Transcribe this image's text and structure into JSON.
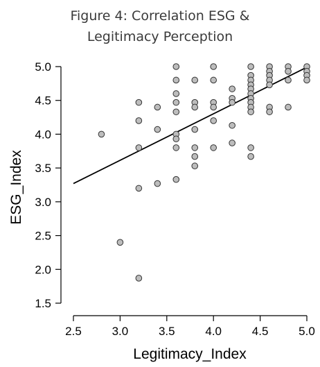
{
  "title_line1": "Figure 4:   Correlation ESG &",
  "title_line2": "Legitimacy Perception",
  "chart_data": {
    "type": "scatter",
    "xlabel": "Legitimacy_Index",
    "ylabel": "ESG_Index",
    "xlim": [
      2.5,
      5.0
    ],
    "ylim": [
      1.5,
      5.0
    ],
    "xticks": [
      "2.5",
      "3.0",
      "3.5",
      "4.0",
      "4.5",
      "5.0"
    ],
    "yticks": [
      "1.5",
      "2.0",
      "2.5",
      "3.0",
      "3.5",
      "4.0",
      "4.5",
      "5.0"
    ],
    "grid": false,
    "regression_line": {
      "x": [
        2.5,
        5.0
      ],
      "y": [
        3.27,
        4.99
      ]
    },
    "points": [
      {
        "x": 2.8,
        "y": 4.0
      },
      {
        "x": 3.0,
        "y": 2.4
      },
      {
        "x": 3.2,
        "y": 4.47
      },
      {
        "x": 3.2,
        "y": 4.2
      },
      {
        "x": 3.2,
        "y": 3.8
      },
      {
        "x": 3.2,
        "y": 3.2
      },
      {
        "x": 3.2,
        "y": 1.87
      },
      {
        "x": 3.4,
        "y": 4.4
      },
      {
        "x": 3.4,
        "y": 4.07
      },
      {
        "x": 3.4,
        "y": 3.27
      },
      {
        "x": 3.6,
        "y": 5.0
      },
      {
        "x": 3.6,
        "y": 4.8
      },
      {
        "x": 3.6,
        "y": 4.6
      },
      {
        "x": 3.6,
        "y": 4.47
      },
      {
        "x": 3.6,
        "y": 4.33
      },
      {
        "x": 3.6,
        "y": 4.0
      },
      {
        "x": 3.6,
        "y": 3.93
      },
      {
        "x": 3.6,
        "y": 3.8
      },
      {
        "x": 3.6,
        "y": 3.33
      },
      {
        "x": 3.8,
        "y": 4.8
      },
      {
        "x": 3.8,
        "y": 4.47
      },
      {
        "x": 3.8,
        "y": 4.4
      },
      {
        "x": 3.8,
        "y": 4.07
      },
      {
        "x": 3.8,
        "y": 3.8
      },
      {
        "x": 3.8,
        "y": 3.67
      },
      {
        "x": 3.8,
        "y": 3.53
      },
      {
        "x": 4.0,
        "y": 5.0
      },
      {
        "x": 4.0,
        "y": 4.8
      },
      {
        "x": 4.0,
        "y": 4.47
      },
      {
        "x": 4.0,
        "y": 4.4
      },
      {
        "x": 4.0,
        "y": 4.2
      },
      {
        "x": 4.0,
        "y": 3.8
      },
      {
        "x": 4.2,
        "y": 4.67
      },
      {
        "x": 4.2,
        "y": 4.53
      },
      {
        "x": 4.2,
        "y": 4.47
      },
      {
        "x": 4.2,
        "y": 4.13
      },
      {
        "x": 4.2,
        "y": 3.87
      },
      {
        "x": 4.4,
        "y": 5.0
      },
      {
        "x": 4.4,
        "y": 4.87
      },
      {
        "x": 4.4,
        "y": 4.8
      },
      {
        "x": 4.4,
        "y": 4.73
      },
      {
        "x": 4.4,
        "y": 4.67
      },
      {
        "x": 4.4,
        "y": 4.6
      },
      {
        "x": 4.4,
        "y": 4.53
      },
      {
        "x": 4.4,
        "y": 4.47
      },
      {
        "x": 4.4,
        "y": 4.4
      },
      {
        "x": 4.4,
        "y": 4.33
      },
      {
        "x": 4.4,
        "y": 3.8
      },
      {
        "x": 4.4,
        "y": 3.67
      },
      {
        "x": 4.6,
        "y": 5.0
      },
      {
        "x": 4.6,
        "y": 4.93
      },
      {
        "x": 4.6,
        "y": 4.87
      },
      {
        "x": 4.6,
        "y": 4.8
      },
      {
        "x": 4.6,
        "y": 4.73
      },
      {
        "x": 4.6,
        "y": 4.4
      },
      {
        "x": 4.6,
        "y": 4.33
      },
      {
        "x": 4.8,
        "y": 5.0
      },
      {
        "x": 4.8,
        "y": 4.93
      },
      {
        "x": 4.8,
        "y": 4.8
      },
      {
        "x": 4.8,
        "y": 4.4
      },
      {
        "x": 5.0,
        "y": 5.0
      },
      {
        "x": 5.0,
        "y": 4.93
      },
      {
        "x": 5.0,
        "y": 4.87
      },
      {
        "x": 5.0,
        "y": 4.8
      }
    ],
    "point_fill": "#bdbdbd",
    "point_stroke": "#333333"
  }
}
